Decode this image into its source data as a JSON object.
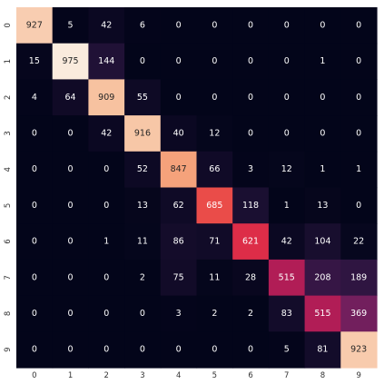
{
  "chart_data": {
    "type": "heatmap",
    "title": "",
    "xlabel": "",
    "ylabel": "",
    "x_ticks": [
      "0",
      "1",
      "2",
      "3",
      "4",
      "5",
      "6",
      "7",
      "8",
      "9"
    ],
    "y_ticks": [
      "0",
      "1",
      "2",
      "3",
      "4",
      "5",
      "6",
      "7",
      "8",
      "9"
    ],
    "values": [
      [
        927,
        5,
        42,
        6,
        0,
        0,
        0,
        0,
        0,
        0
      ],
      [
        15,
        975,
        144,
        0,
        0,
        0,
        0,
        0,
        1,
        0
      ],
      [
        4,
        64,
        909,
        55,
        0,
        0,
        0,
        0,
        0,
        0
      ],
      [
        0,
        0,
        42,
        916,
        40,
        12,
        0,
        0,
        0,
        0
      ],
      [
        0,
        0,
        0,
        52,
        847,
        66,
        3,
        12,
        1,
        1
      ],
      [
        0,
        0,
        0,
        13,
        62,
        685,
        118,
        1,
        13,
        0
      ],
      [
        0,
        0,
        1,
        11,
        86,
        71,
        621,
        42,
        104,
        22
      ],
      [
        0,
        0,
        0,
        2,
        75,
        11,
        28,
        515,
        208,
        189
      ],
      [
        0,
        0,
        0,
        0,
        3,
        2,
        2,
        83,
        515,
        369
      ],
      [
        0,
        0,
        0,
        0,
        0,
        0,
        0,
        5,
        81,
        923
      ]
    ],
    "value_range": [
      0,
      975
    ],
    "colormap": "rocket",
    "grid": false,
    "legend": "none"
  }
}
